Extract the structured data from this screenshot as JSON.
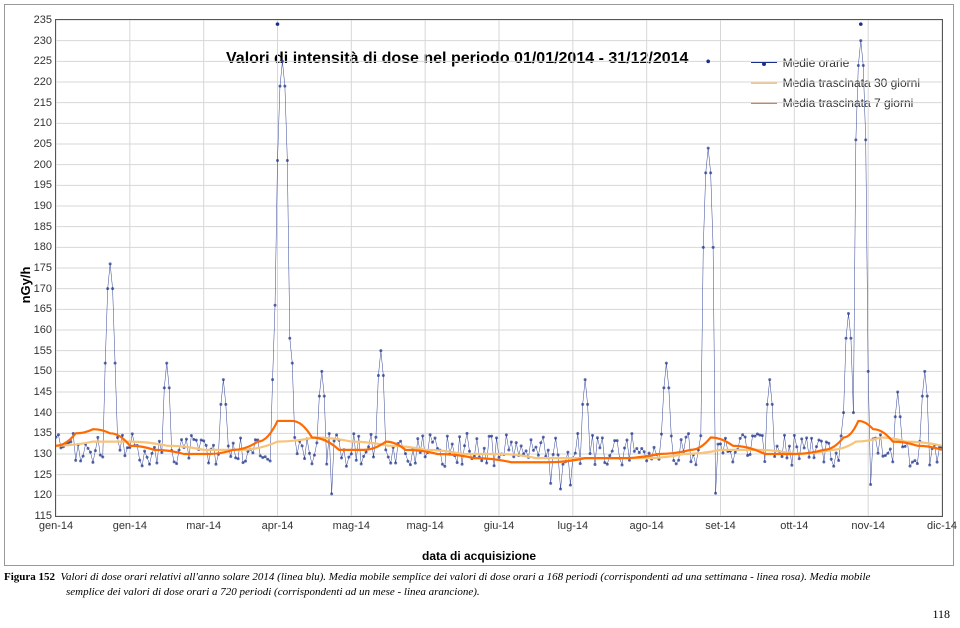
{
  "chart": {
    "type": "line",
    "title": "Valori di intensità di dose nel periodo 01/01/2014 - 31/12/2014",
    "title_fontsize": 16,
    "xlabel": "data di acquisizione",
    "ylabel": "nGy/h",
    "label_fontsize": 13,
    "plot_bg": "#ffffff",
    "frame_border": "#555555",
    "grid_color": "#d7d7d7",
    "xlim": [
      0,
      360
    ],
    "ylim": [
      115,
      235
    ],
    "ytick_step": 5,
    "yticks": [
      115,
      120,
      125,
      130,
      135,
      140,
      145,
      150,
      155,
      160,
      165,
      170,
      175,
      180,
      185,
      190,
      195,
      200,
      205,
      210,
      215,
      220,
      225,
      230,
      235
    ],
    "xticks": [
      {
        "x": 0,
        "label": "gen-14"
      },
      {
        "x": 30,
        "label": "gen-14"
      },
      {
        "x": 60,
        "label": "mar-14"
      },
      {
        "x": 90,
        "label": "apr-14"
      },
      {
        "x": 120,
        "label": "mag-14"
      },
      {
        "x": 150,
        "label": "mag-14"
      },
      {
        "x": 180,
        "label": "giu-14"
      },
      {
        "x": 210,
        "label": "lug-14"
      },
      {
        "x": 240,
        "label": "ago-14"
      },
      {
        "x": 270,
        "label": "set-14"
      },
      {
        "x": 300,
        "label": "ott-14"
      },
      {
        "x": 330,
        "label": "nov-14"
      },
      {
        "x": 360,
        "label": "dic-14"
      }
    ],
    "legend": {
      "items": [
        {
          "label": "Medie orarie",
          "color": "#1b2f8a",
          "marker": "dot"
        },
        {
          "label": "Media trascinata 30 giorni",
          "color": "#f7c47a",
          "marker": "line"
        },
        {
          "label": "Media trascinata 7 giorni",
          "color": "#ff6a00",
          "marker": "line"
        }
      ]
    },
    "series": {
      "hourly": {
        "color": "#1b2f8a",
        "line_width": 0.5,
        "marker_size": 1.5,
        "baseline": 131,
        "noise_amp": 4,
        "noise_step": 1,
        "spikes": [
          {
            "x": 22,
            "y": 176
          },
          {
            "x": 45,
            "y": 152
          },
          {
            "x": 68,
            "y": 148
          },
          {
            "x": 90,
            "y": 172
          },
          {
            "x": 92,
            "y": 225
          },
          {
            "x": 95,
            "y": 158
          },
          {
            "x": 108,
            "y": 150
          },
          {
            "x": 132,
            "y": 155
          },
          {
            "x": 215,
            "y": 148
          },
          {
            "x": 248,
            "y": 152
          },
          {
            "x": 265,
            "y": 204
          },
          {
            "x": 290,
            "y": 148
          },
          {
            "x": 322,
            "y": 164
          },
          {
            "x": 327,
            "y": 230
          },
          {
            "x": 330,
            "y": 150
          },
          {
            "x": 342,
            "y": 145
          },
          {
            "x": 353,
            "y": 150
          }
        ],
        "outliers": [
          {
            "x": 90,
            "y": 234
          },
          {
            "x": 265,
            "y": 225
          },
          {
            "x": 327,
            "y": 234
          }
        ]
      },
      "ma7": {
        "color": "#ff6a00",
        "line_width": 2.2,
        "points": [
          [
            0,
            132
          ],
          [
            8,
            135
          ],
          [
            15,
            136
          ],
          [
            22,
            135
          ],
          [
            30,
            132
          ],
          [
            40,
            131
          ],
          [
            52,
            130
          ],
          [
            62,
            130
          ],
          [
            72,
            131
          ],
          [
            82,
            133
          ],
          [
            90,
            138
          ],
          [
            96,
            138
          ],
          [
            104,
            134
          ],
          [
            115,
            131
          ],
          [
            125,
            131
          ],
          [
            134,
            133
          ],
          [
            142,
            131
          ],
          [
            155,
            130
          ],
          [
            170,
            129
          ],
          [
            185,
            128
          ],
          [
            200,
            128
          ],
          [
            215,
            129
          ],
          [
            230,
            129
          ],
          [
            245,
            130
          ],
          [
            258,
            131
          ],
          [
            266,
            134
          ],
          [
            275,
            132
          ],
          [
            288,
            130
          ],
          [
            300,
            130
          ],
          [
            312,
            131
          ],
          [
            320,
            134
          ],
          [
            326,
            138
          ],
          [
            332,
            136
          ],
          [
            340,
            133
          ],
          [
            350,
            132
          ],
          [
            360,
            131
          ]
        ]
      },
      "ma30": {
        "color": "#f7c47a",
        "line_width": 2.2,
        "points": [
          [
            0,
            132
          ],
          [
            15,
            133
          ],
          [
            30,
            133
          ],
          [
            45,
            132
          ],
          [
            60,
            131
          ],
          [
            75,
            131
          ],
          [
            90,
            133
          ],
          [
            105,
            134
          ],
          [
            120,
            133
          ],
          [
            135,
            132
          ],
          [
            150,
            131
          ],
          [
            165,
            130
          ],
          [
            180,
            130
          ],
          [
            195,
            129
          ],
          [
            210,
            129
          ],
          [
            225,
            129
          ],
          [
            240,
            129
          ],
          [
            255,
            130
          ],
          [
            270,
            131
          ],
          [
            285,
            131
          ],
          [
            300,
            130
          ],
          [
            315,
            131
          ],
          [
            325,
            133
          ],
          [
            335,
            134
          ],
          [
            345,
            133
          ],
          [
            360,
            132
          ]
        ]
      }
    }
  },
  "caption": {
    "fig_label": "Figura 152",
    "body_1": "Valori di dose orari relativi all'anno solare 2014 (linea blu). Media mobile semplice dei valori di dose orari a 168 periodi (corrispondenti ad una settimana - linea rosa). Media mobile",
    "body_2": "semplice dei valori di dose orari a 720 periodi (corrispondenti ad un mese - linea arancione)."
  },
  "page_number": "118"
}
